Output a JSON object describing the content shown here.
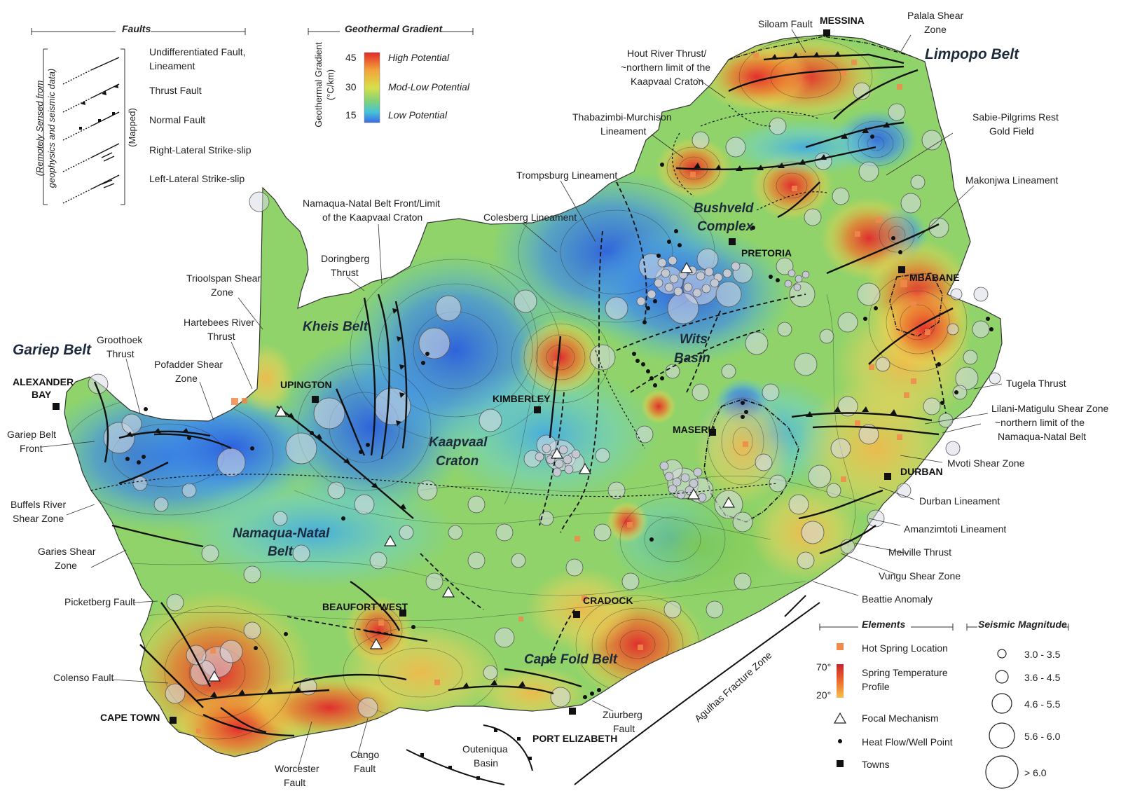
{
  "colors": {
    "high": "#e6302b",
    "mid": "#f5c542",
    "low": "#3a8fe8",
    "water": "#ffffff",
    "contour": "#2a2a2a"
  },
  "legend_faults": {
    "title": "Faults",
    "remote_label_1": "(Remotely Sensed from",
    "remote_label_2": "geophysics and seismic data)",
    "mapped_label": "(Mapped)",
    "items": [
      "Undifferentiated Fault,",
      "Lineament",
      "Thrust Fault",
      "Normal Fault",
      "Right-Lateral Strike-slip",
      "Left-Lateral Strike-slip"
    ]
  },
  "legend_gradient": {
    "title": "Geothermal Gradient",
    "axis_label_1": "Geothermal Gradient",
    "axis_label_2": "(°C/km)",
    "ticks": [
      "45",
      "30",
      "15"
    ],
    "levels": [
      "High Potential",
      "Mod-Low Potential",
      "Low Potential"
    ]
  },
  "legend_elements": {
    "title": "Elements",
    "hot_spring": "Hot Spring Location",
    "spring_temp_1": "Spring Temperature",
    "spring_temp_2": "Profile",
    "temp_high": "70°",
    "temp_low": "20°",
    "focal": "Focal Mechanism",
    "heat_flow": "Heat Flow/Well Point",
    "towns": "Towns"
  },
  "legend_seismic": {
    "title": "Seismic Magnitude",
    "classes": [
      "3.0 - 3.5",
      "3.6 - 4.5",
      "4.6 - 5.5",
      "5.6 - 6.0",
      "> 6.0"
    ]
  },
  "towns": {
    "messina": "MESSINA",
    "pretoria": "PRETORIA",
    "mbabane": "MBABANE",
    "upington": "UPINGTON",
    "alexander_bay_1": "ALEXANDER",
    "alexander_bay_2": "BAY",
    "kimberley": "KIMBERLEY",
    "maseru": "MASERU",
    "durban": "DURBAN",
    "beaufort_west": "BEAUFORT WEST",
    "cradock": "CRADOCK",
    "cape_town": "CAPE TOWN",
    "port_elizabeth": "PORT ELIZABETH"
  },
  "regions": {
    "limpopo": "Limpopo Belt",
    "gariep": "Gariep Belt",
    "bushveld_1": "Bushveld",
    "bushveld_2": "Complex",
    "kheis": "Kheis Belt",
    "wits_1": "Wits",
    "wits_2": "Basin",
    "kaapvaal_1": "Kaapvaal",
    "kaapvaal_2": "Craton",
    "namaqua_1": "Namaqua-Natal",
    "namaqua_2": "Belt",
    "cape_fold": "Cape Fold Belt"
  },
  "labels": {
    "siloam": "Siloam Fault",
    "palala_1": "Palala Shear",
    "palala_2": "Zone",
    "hout_1": "Hout River Thrust/",
    "hout_2": "~northern limit of the",
    "hout_3": "Kaapvaal Craton",
    "thabazimbi_1": "Thabazimbi-Murchison",
    "thabazimbi_2": "Lineament",
    "sabie_1": "Sabie-Pilgrims Rest",
    "sabie_2": "Gold Field",
    "trompsburg": "Trompsburg Lineament",
    "makonjwa": "Makonjwa Lineament",
    "namaqua_front_1": "Namaqua-Natal Belt Front/Limit",
    "namaqua_front_2": "of the Kaapvaal Craton",
    "colesberg": "Colesberg Lineament",
    "doringberg_1": "Doringberg",
    "doringberg_2": "Thrust",
    "trioolspan_1": "Trioolspan Shear",
    "trioolspan_2": "Zone",
    "hartebees_1": "Hartebees River",
    "hartebees_2": "Thrust",
    "groothoek_1": "Groothoek",
    "groothoek_2": "Thrust",
    "pofadder_1": "Pofadder Shear",
    "pofadder_2": "Zone",
    "gariep_front_1": "Gariep Belt",
    "gariep_front_2": "Front",
    "buffels_1": "Buffels River",
    "buffels_2": "Shear Zone",
    "garies_1": "Garies Shear",
    "garies_2": "Zone",
    "picketberg": "Picketberg Fault",
    "colenso": "Colenso Fault",
    "worcester_1": "Worcester",
    "worcester_2": "Fault",
    "cango_1": "Cango",
    "cango_2": "Fault",
    "outeniqua_1": "Outeniqua",
    "outeniqua_2": "Basin",
    "zuurberg_1": "Zuurberg",
    "zuurberg_2": "Fault",
    "agulhas": "Agulhas Fracture Zone",
    "tugela": "Tugela Thrust",
    "lilani_1": "Lilani-Matigulu Shear Zone",
    "lilani_2": "~northern limit of the",
    "lilani_3": "Namaqua-Natal Belt",
    "mvoti": "Mvoti Shear Zone",
    "durban_lin": "Durban Lineament",
    "amanzimtoti": "Amanzimtoti Lineament",
    "melville": "Melville Thrust",
    "vungu": "Vungu Shear Zone",
    "beattie": "Beattie Anomaly"
  }
}
